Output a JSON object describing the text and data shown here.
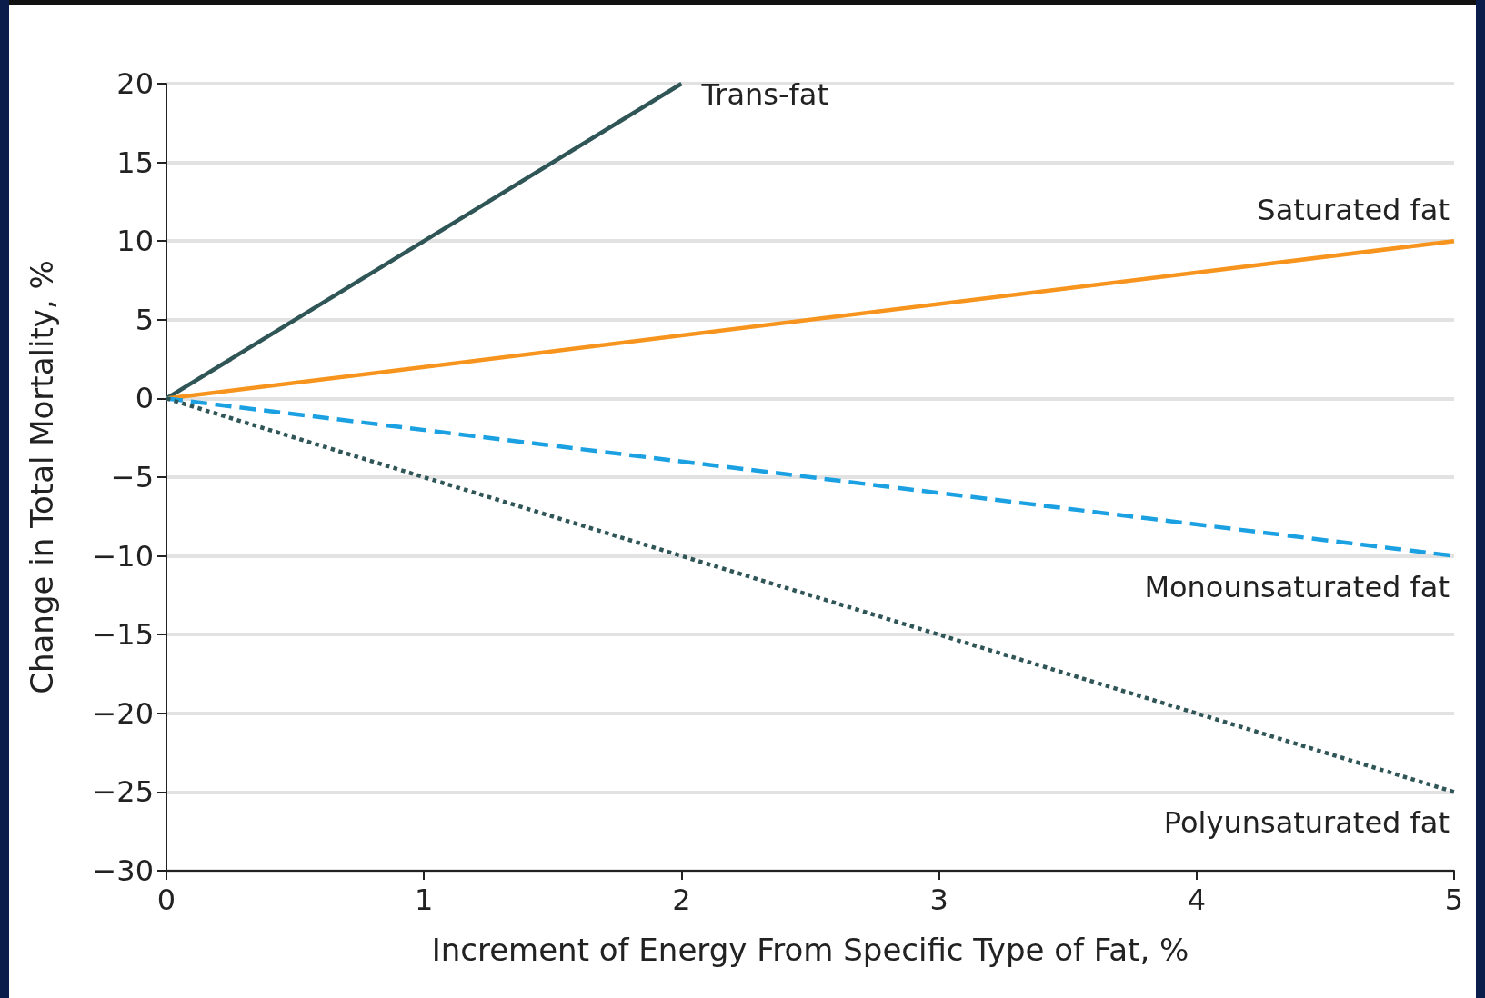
{
  "chart_data": {
    "type": "line",
    "xlabel": "Increment of Energy From Specific Type of Fat, %",
    "ylabel": "Change in Total Mortality, %",
    "series": [
      {
        "name": "Trans-fat",
        "color": "#2f5557",
        "x": [
          0,
          2
        ],
        "values": [
          0,
          20
        ],
        "line_style": "solid"
      },
      {
        "name": "Saturated fat",
        "color": "#f7941d",
        "x": [
          0,
          5
        ],
        "values": [
          0,
          10
        ],
        "line_style": "solid"
      },
      {
        "name": "Monounsaturated fat",
        "color": "#1ba1e2",
        "x": [
          0,
          5
        ],
        "values": [
          0,
          -10
        ],
        "line_style": "dashed"
      },
      {
        "name": "Polyunsaturated fat",
        "color": "#2f5557",
        "x": [
          0,
          5
        ],
        "values": [
          0,
          -25
        ],
        "line_style": "dotted"
      }
    ],
    "xlim": [
      0,
      5
    ],
    "xticks": [
      0,
      1,
      2,
      3,
      4,
      5
    ],
    "ylim": [
      -30,
      20
    ],
    "yticks": [
      -30,
      -25,
      -20,
      -15,
      -10,
      -5,
      0,
      5,
      10,
      15,
      20
    ],
    "grid": "y",
    "legend": false,
    "marker": "none"
  }
}
